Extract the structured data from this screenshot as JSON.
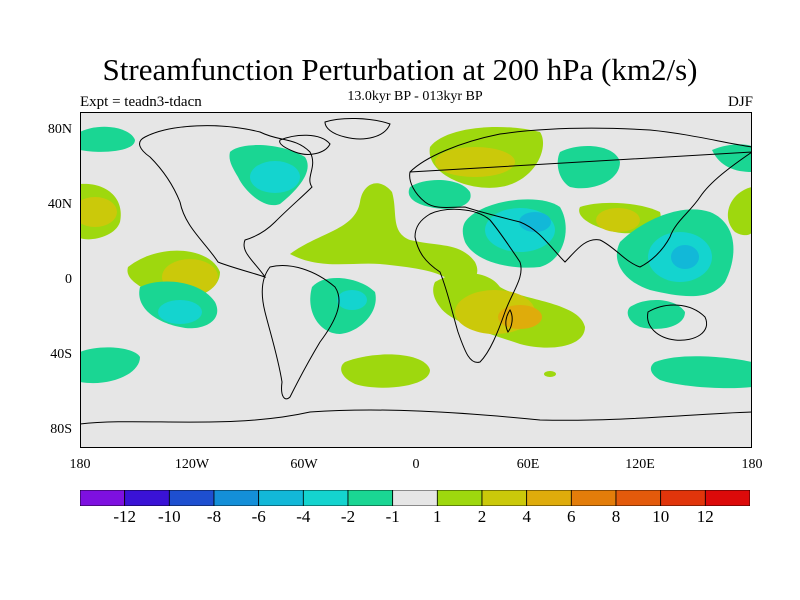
{
  "title": "Streamfunction Perturbation at 200 hPa (km2/s)",
  "subtitle": "13.0kyr BP - 013kyr BP",
  "left_label": "Expt = teadn3-tdacn",
  "right_label": "DJF",
  "lat_labels": [
    "80N",
    "40N",
    "0",
    "40S",
    "80S"
  ],
  "lon_labels": [
    "180",
    "120W",
    "60W",
    "0",
    "60E",
    "120E",
    "180"
  ],
  "colorbar": {
    "labels": [
      "-12",
      "-10",
      "-8",
      "-6",
      "-4",
      "-2",
      "-1",
      "1",
      "2",
      "4",
      "6",
      "8",
      "10",
      "12"
    ],
    "colors": [
      "#7e10e0",
      "#3a12d6",
      "#1e4fd0",
      "#148fd8",
      "#12b8d8",
      "#14d4cf",
      "#1ad693",
      "#e6e6e6",
      "#9ed80e",
      "#cbc90a",
      "#dfac0b",
      "#e37d0a",
      "#e35a0b",
      "#e1350b",
      "#dc0a0a"
    ]
  },
  "colors": {
    "background_field": "#e6e6e6",
    "positive_weak": "#9ed80e",
    "positive_mid": "#cbc90a",
    "positive_strong": "#dfac0b",
    "negative_weak": "#1ad693",
    "negative_mid": "#14d4cf",
    "negative_strong": "#12b8d8"
  }
}
